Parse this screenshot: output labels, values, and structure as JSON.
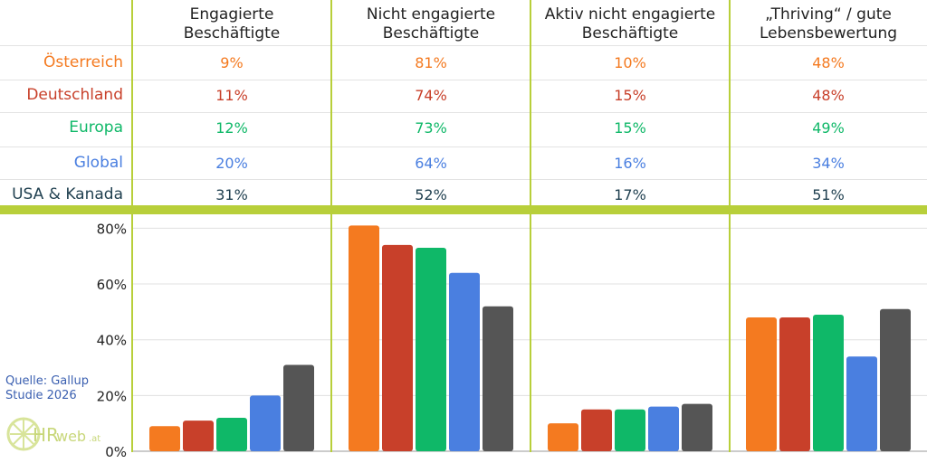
{
  "table": {
    "columns": [
      "Engagierte\nBeschäftigte",
      "Nicht engagierte\nBeschäftigte",
      "Aktiv nicht engagierte\nBeschäftigte",
      "„Thriving“ / gute\nLebensbewertung"
    ],
    "rows": [
      {
        "label": "Österreich",
        "color": "#f47a20",
        "values": [
          "9%",
          "81%",
          "10%",
          "48%"
        ]
      },
      {
        "label": "Deutschland",
        "color": "#c8402a",
        "values": [
          "11%",
          "74%",
          "15%",
          "48%"
        ]
      },
      {
        "label": "Europa",
        "color": "#0fb868",
        "values": [
          "12%",
          "73%",
          "15%",
          "49%"
        ]
      },
      {
        "label": "Global",
        "color": "#4a7fe0",
        "values": [
          "20%",
          "64%",
          "16%",
          "34%"
        ]
      },
      {
        "label": "USA & Kanada",
        "color": "#1f3f4f",
        "values": [
          "31%",
          "52%",
          "17%",
          "51%"
        ]
      }
    ]
  },
  "chart_data": {
    "type": "bar",
    "categories": [
      "Engagierte Beschäftigte",
      "Nicht engagierte Beschäftigte",
      "Aktiv nicht engagierte Beschäftigte",
      "„Thriving“ / gute Lebensbewertung"
    ],
    "series": [
      {
        "name": "Österreich",
        "color": "#f47a20",
        "values": [
          9,
          81,
          10,
          48
        ]
      },
      {
        "name": "Deutschland",
        "color": "#c8402a",
        "values": [
          11,
          74,
          15,
          48
        ]
      },
      {
        "name": "Europa",
        "color": "#0fb868",
        "values": [
          12,
          73,
          15,
          49
        ]
      },
      {
        "name": "Global",
        "color": "#4a7fe0",
        "values": [
          20,
          64,
          16,
          34
        ]
      },
      {
        "name": "USA & Kanada",
        "color": "#555555",
        "values": [
          31,
          52,
          17,
          51
        ]
      }
    ],
    "ylim": [
      0,
      85
    ],
    "yticks": [
      "0%",
      "20%",
      "40%",
      "60%",
      "80%"
    ],
    "ytick_values": [
      0,
      20,
      40,
      60,
      80
    ],
    "grid": true
  },
  "source": {
    "line1": "Quelle: Gallup",
    "line2": "Studie 2026"
  },
  "logo": {
    "text_hr": "HR",
    "text_web": "web",
    "text_at": ".at"
  }
}
